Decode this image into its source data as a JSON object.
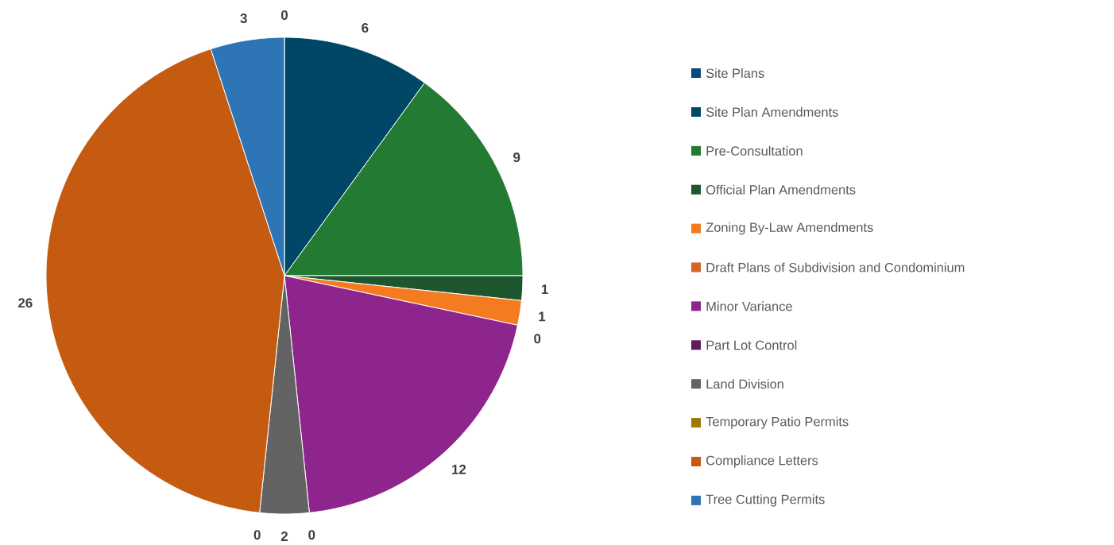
{
  "chart_data": {
    "type": "pie",
    "categories": [
      "Site Plans",
      "Site Plan Amendments",
      "Pre-Consultation",
      "Official Plan Amendments",
      "Zoning By-Law Amendments",
      "Draft Plans of Subdivision and Condominium",
      "Minor Variance",
      "Part Lot Control",
      "Land Division",
      "Temporary Patio Permits",
      "Compliance Letters",
      "Tree Cutting Permits"
    ],
    "values": [
      0,
      6,
      9,
      1,
      1,
      0,
      12,
      0,
      2,
      0,
      26,
      3
    ],
    "colors": [
      "#0e4876",
      "#004666",
      "#237b33",
      "#1e5630",
      "#f47b20",
      "#d5622a",
      "#8e258d",
      "#5c1f5c",
      "#636363",
      "#9c7a00",
      "#c55a11",
      "#2e75b6"
    ],
    "value_labels": [
      "0",
      "6",
      "9",
      "1",
      "1",
      "0",
      "12",
      "0",
      "2",
      "0",
      "26",
      "3"
    ],
    "legend": "right"
  }
}
